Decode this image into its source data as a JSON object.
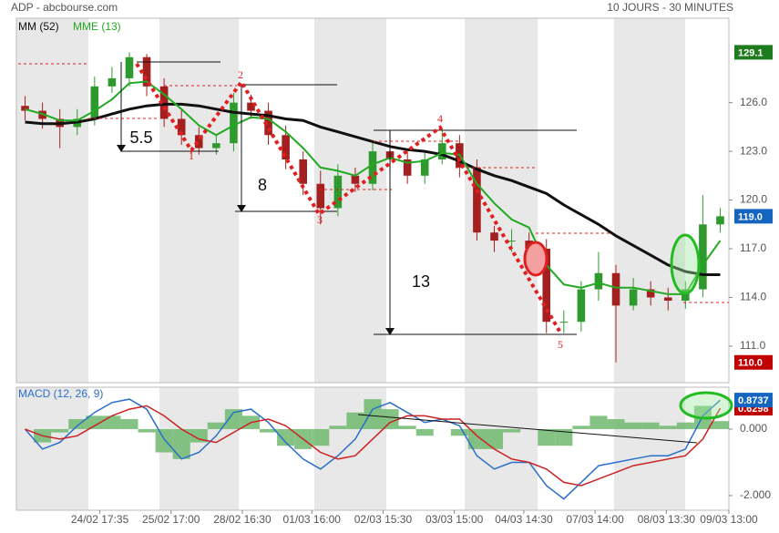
{
  "chart_data": [
    {
      "type": "candlestick",
      "title": "ADP - abcbourse.com",
      "subtitle": "10 JOURS - 30 MINUTES",
      "x": [
        0,
        1,
        2,
        3,
        4,
        5,
        6,
        7,
        8,
        9,
        10,
        11,
        12,
        13,
        14,
        15,
        16,
        17,
        18,
        19,
        20,
        21,
        22,
        23,
        24,
        25,
        26,
        27,
        28,
        29,
        30,
        31,
        32,
        33,
        34,
        35,
        36,
        37,
        38,
        39,
        40
      ],
      "xlim": [
        -0.5,
        40.5
      ],
      "xticks": [
        {
          "value": 4.3,
          "label": "24/02 17:35"
        },
        {
          "value": 8.4,
          "label": "25/02 17:00"
        },
        {
          "value": 12.5,
          "label": "28/02 16:30"
        },
        {
          "value": 16.5,
          "label": "01/03 16:00"
        },
        {
          "value": 20.6,
          "label": "02/03 15:30"
        },
        {
          "value": 24.7,
          "label": "03/03 15:00"
        },
        {
          "value": 28.7,
          "label": "04/03 14:30"
        },
        {
          "value": 32.8,
          "label": "07/03 14:00"
        },
        {
          "value": 36.9,
          "label": "08/03 13:30"
        },
        {
          "value": 40.5,
          "label": "09/03 13:00"
        }
      ],
      "open": [
        125.8,
        125.5,
        125,
        124.5,
        125,
        127,
        127.5,
        128.8,
        127,
        125,
        124,
        123.2,
        123.5,
        126,
        125.5,
        124,
        122.5,
        121,
        119.5,
        121.5,
        121,
        123,
        122.5,
        121.5,
        122.5,
        123.5,
        122,
        118,
        117.5,
        117.5,
        117,
        112.5,
        112.5,
        114.5,
        115.5,
        113.5,
        114.5,
        114,
        113.8,
        114.5,
        118.5
      ],
      "high": [
        126.4,
        126,
        125.6,
        125.6,
        127.6,
        128.2,
        129.1,
        129.0,
        127.5,
        125.6,
        124.5,
        124,
        126.6,
        126.5,
        126,
        124.6,
        123,
        121.8,
        122.2,
        122,
        123.6,
        124.2,
        123,
        123,
        124.3,
        124,
        122.5,
        118.4,
        118.2,
        118,
        117.6,
        113.2,
        115,
        116.8,
        116,
        115.2,
        115,
        114.6,
        115,
        120.3,
        119.5
      ],
      "low": [
        124.9,
        124.4,
        123.2,
        124,
        124.6,
        126.6,
        127,
        126.4,
        124.5,
        123.4,
        122.8,
        122.8,
        123,
        125,
        123.4,
        121.9,
        120.3,
        118.5,
        119,
        120.5,
        120.6,
        121.8,
        121,
        121,
        122.2,
        121.4,
        117.5,
        116.8,
        116.8,
        116.4,
        111.8,
        111.8,
        111.9,
        113.8,
        110.0,
        113.2,
        113.5,
        113.2,
        113.3,
        114,
        118
      ],
      "close": [
        125.5,
        125,
        124.5,
        125,
        127,
        127.5,
        128.8,
        127,
        125,
        124,
        123.2,
        123.5,
        126,
        125.5,
        124,
        122.5,
        121,
        119.5,
        121.5,
        121,
        123,
        122.5,
        121.5,
        122.5,
        123.5,
        122,
        118,
        117.5,
        117.5,
        117,
        112.5,
        112.5,
        114.5,
        115.5,
        113.5,
        114.5,
        114,
        113.8,
        114.5,
        118.5,
        119
      ],
      "up_color": "#2e9a2e",
      "down_color": "#a32020",
      "series": [
        {
          "name": "MM (52)",
          "color": "#111111",
          "values": [
            124.8,
            124.7,
            124.7,
            124.8,
            125.0,
            125.3,
            125.6,
            125.8,
            125.9,
            125.9,
            125.8,
            125.6,
            125.4,
            125.3,
            125.2,
            125.0,
            124.9,
            124.5,
            124.2,
            123.9,
            123.6,
            123.3,
            123.1,
            123.0,
            122.8,
            122.4,
            121.9,
            121.5,
            121.2,
            120.8,
            120.4,
            119.7,
            119.1,
            118.5,
            117.8,
            117.2,
            116.6,
            116.0,
            115.6,
            115.4,
            115.4
          ]
        },
        {
          "name": "MME (13)",
          "color": "#22aa22",
          "values": [
            125.6,
            125.3,
            124.9,
            124.9,
            125.5,
            126.2,
            127.2,
            127.3,
            126.5,
            125.6,
            124.6,
            124.0,
            124.6,
            125.1,
            125.0,
            124.2,
            123.2,
            122.0,
            121.8,
            121.5,
            122.2,
            122.6,
            122.3,
            122.4,
            122.9,
            122.8,
            121.0,
            119.8,
            118.8,
            118.3,
            116.0,
            114.8,
            114.6,
            114.9,
            114.6,
            114.6,
            114.4,
            114.2,
            114.2,
            116.0,
            117.5
          ]
        }
      ],
      "ylim": [
        108.75,
        131.2
      ],
      "yticks": [
        {
          "value": 111,
          "label": "111.0"
        },
        {
          "value": 114,
          "label": "114.0"
        },
        {
          "value": 117,
          "label": "117.0"
        },
        {
          "value": 120,
          "label": "120.0"
        },
        {
          "value": 123,
          "label": "123.0"
        },
        {
          "value": 126,
          "label": "126.0"
        }
      ],
      "price_tags": [
        {
          "value": 129.1,
          "label": "129.1",
          "color": "#1e7b1e"
        },
        {
          "value": 119,
          "label": "119.0",
          "color": "#1565c0"
        },
        {
          "value": 110,
          "label": "110.0",
          "color": "#c00000"
        }
      ],
      "annotations": [
        "5.5",
        "8",
        "13",
        "1",
        "2",
        "3",
        "4",
        "5"
      ]
    },
    {
      "type": "line",
      "title": "MACD (12, 26, 9)",
      "series": [
        {
          "color": "#2a6fc9",
          "values": [
            0.0,
            -0.6,
            -0.4,
            0.1,
            0.5,
            0.8,
            0.9,
            0.6,
            -0.3,
            -0.9,
            -0.7,
            -0.2,
            0.5,
            0.6,
            0.2,
            -0.4,
            -0.9,
            -1.2,
            -0.8,
            -0.3,
            0.6,
            0.8,
            0.5,
            0.2,
            0.3,
            0.1,
            -0.8,
            -1.2,
            -1.0,
            -1.0,
            -1.7,
            -2.1,
            -1.6,
            -1.1,
            -1.0,
            -0.9,
            -0.8,
            -0.8,
            -0.6,
            0.4,
            0.87
          ]
        },
        {
          "color": "#cc2222",
          "values": [
            0.0,
            -0.2,
            -0.3,
            -0.2,
            0.1,
            0.4,
            0.6,
            0.7,
            0.4,
            0.0,
            -0.3,
            -0.4,
            -0.1,
            0.2,
            0.3,
            0.1,
            -0.3,
            -0.7,
            -0.9,
            -0.8,
            -0.3,
            0.2,
            0.4,
            0.4,
            0.3,
            0.3,
            -0.2,
            -0.6,
            -0.9,
            -1.0,
            -1.2,
            -1.6,
            -1.7,
            -1.5,
            -1.3,
            -1.1,
            -1.0,
            -0.9,
            -0.8,
            -0.3,
            0.63
          ]
        }
      ],
      "histogram": {
        "color": "#6fb96f",
        "values": [
          0,
          -0.4,
          -0.1,
          0.3,
          0.4,
          0.4,
          0.3,
          -0.1,
          -0.7,
          -0.9,
          -0.4,
          0.2,
          0.6,
          0.4,
          -0.1,
          -0.5,
          -0.6,
          -0.5,
          0.1,
          0.5,
          0.9,
          0.6,
          0.1,
          -0.2,
          0,
          -0.2,
          -0.6,
          -0.6,
          -0.1,
          0,
          -0.5,
          -0.5,
          0.1,
          0.4,
          0.3,
          0.2,
          0.2,
          0.1,
          0.2,
          0.7,
          0.24
        ]
      },
      "ylim": [
        -2.44,
        1.26
      ],
      "yticks": [
        {
          "value": -2,
          "label": "-2.000"
        },
        {
          "value": 0,
          "label": "0.000"
        }
      ],
      "value_tags": [
        {
          "value": 0.6298,
          "label": "0.6298",
          "color": "#c00000"
        },
        {
          "value": 0.8737,
          "label": "0.8737",
          "color": "#1565c0"
        }
      ]
    }
  ]
}
